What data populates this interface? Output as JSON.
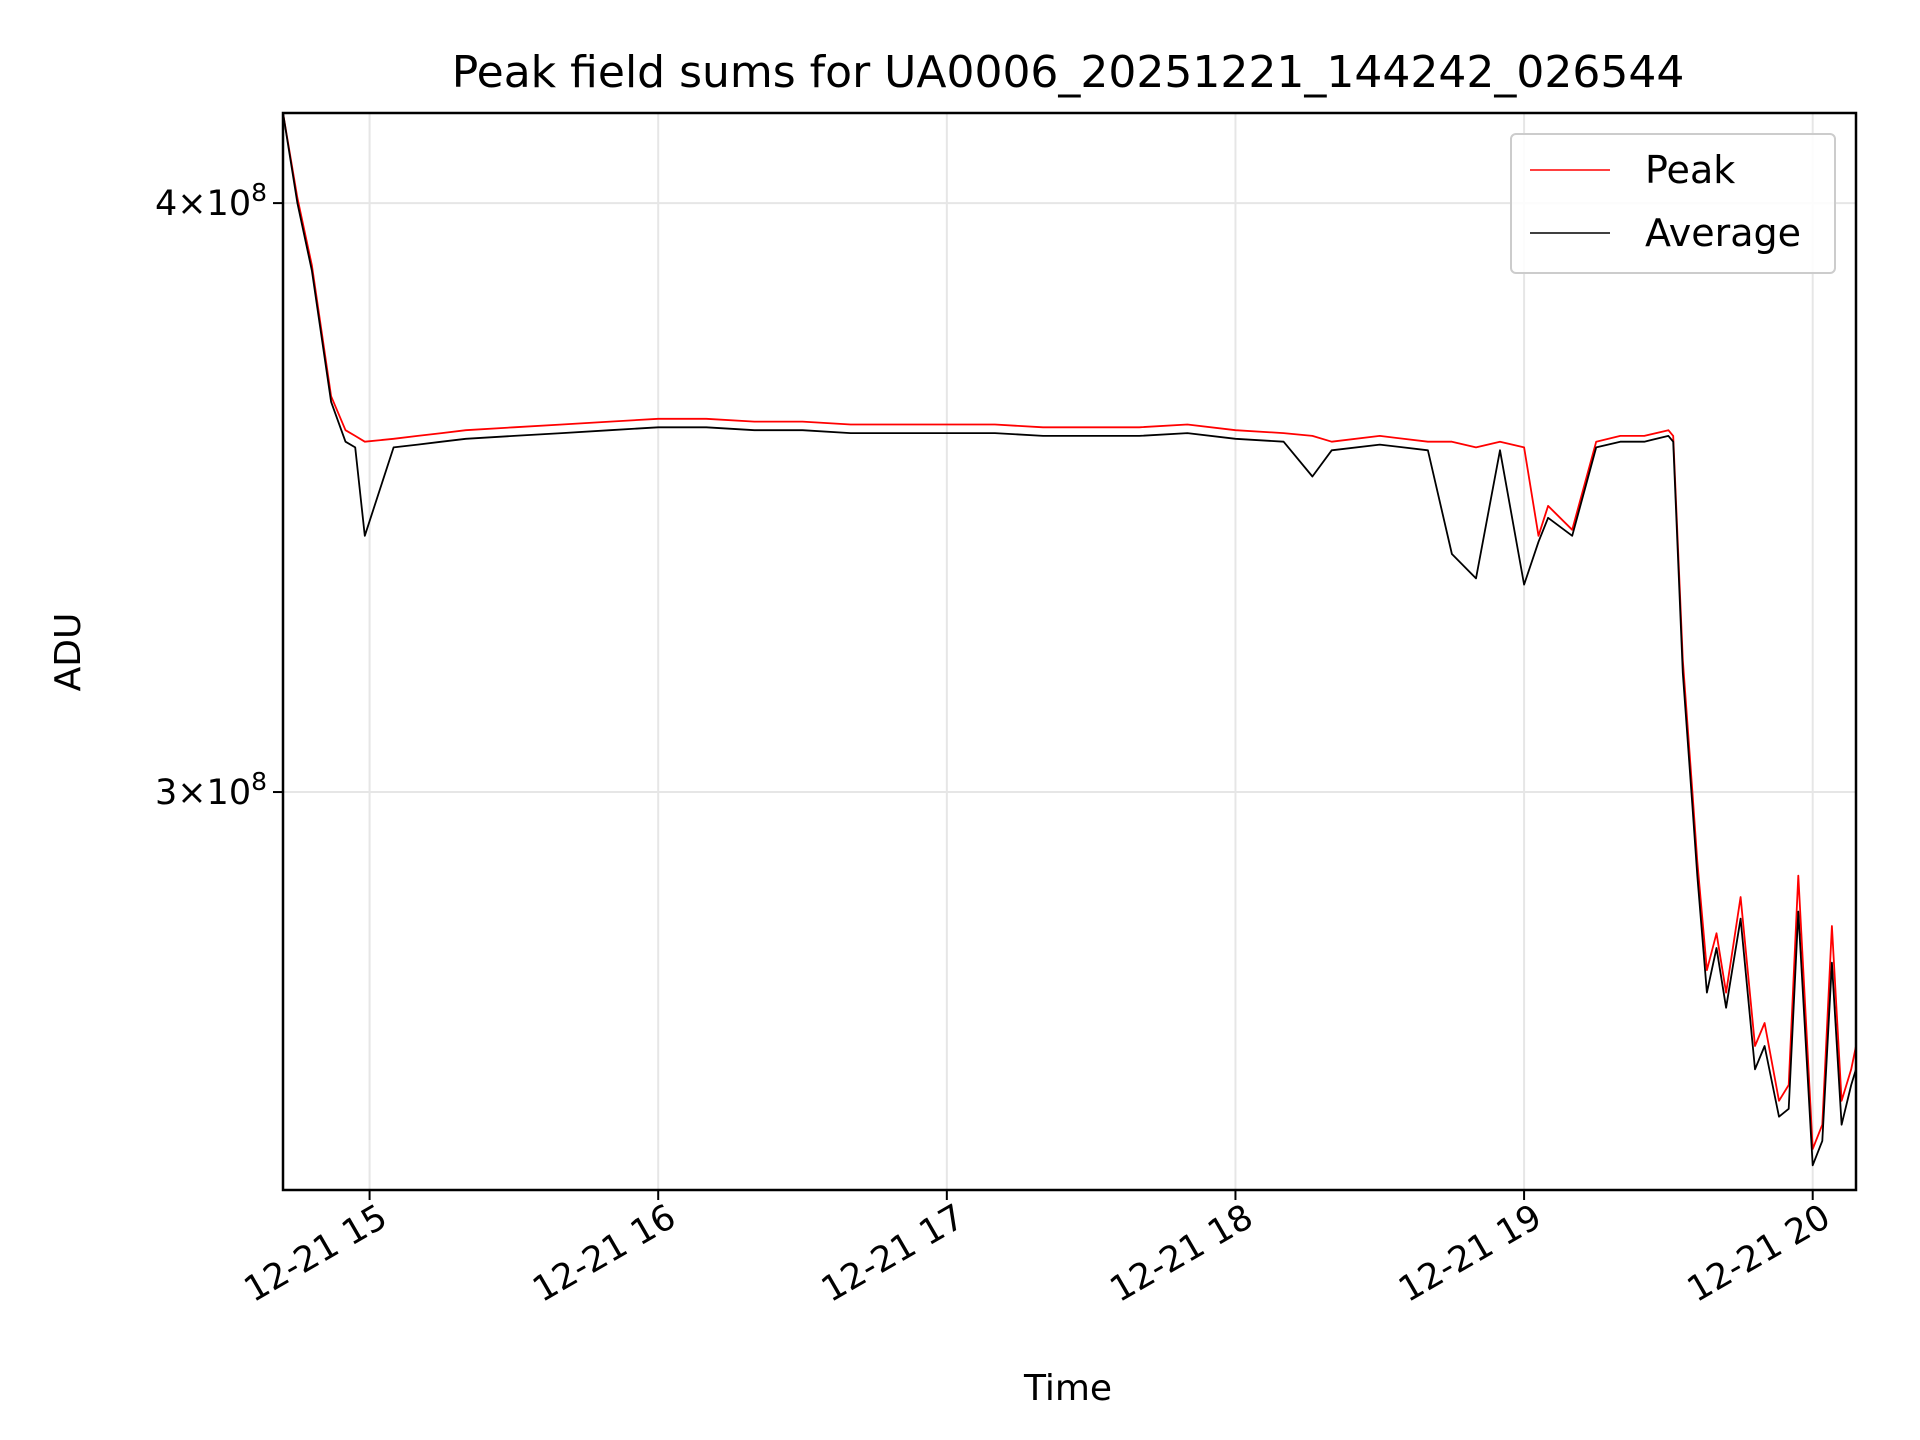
{
  "chart_data": {
    "type": "line",
    "title": "Peak field sums for UA0006_20251221_144242_026544",
    "xlabel": "Time",
    "ylabel": "ADU",
    "y_scale": "log",
    "grid": true,
    "legend_position": "upper right",
    "xlim": [
      "2025-12-21T14:42:00",
      "2025-12-21T20:09:00"
    ],
    "ylim": [
      247000000,
      418000000
    ],
    "x_ticks": [
      {
        "value": "2025-12-21T15:00:00",
        "label": "12-21 15"
      },
      {
        "value": "2025-12-21T16:00:00",
        "label": "12-21 16"
      },
      {
        "value": "2025-12-21T17:00:00",
        "label": "12-21 17"
      },
      {
        "value": "2025-12-21T18:00:00",
        "label": "12-21 18"
      },
      {
        "value": "2025-12-21T19:00:00",
        "label": "12-21 19"
      },
      {
        "value": "2025-12-21T20:00:00",
        "label": "12-21 20"
      }
    ],
    "y_ticks": [
      {
        "value": 400000000,
        "mantissa": "4",
        "times": "×",
        "base": "10",
        "exp": "8"
      },
      {
        "value": 300000000,
        "mantissa": "3",
        "times": "×",
        "base": "10",
        "exp": "8"
      }
    ],
    "series": [
      {
        "name": "Peak",
        "color": "#ff0000",
        "x": [
          "2025-12-21T14:42:00",
          "2025-12-21T14:45:00",
          "2025-12-21T14:48:00",
          "2025-12-21T14:52:00",
          "2025-12-21T14:55:00",
          "2025-12-21T14:57:00",
          "2025-12-21T14:59:00",
          "2025-12-21T15:05:00",
          "2025-12-21T15:10:00",
          "2025-12-21T15:15:00",
          "2025-12-21T15:20:00",
          "2025-12-21T15:30:00",
          "2025-12-21T15:40:00",
          "2025-12-21T15:50:00",
          "2025-12-21T16:00:00",
          "2025-12-21T16:10:00",
          "2025-12-21T16:20:00",
          "2025-12-21T16:30:00",
          "2025-12-21T16:40:00",
          "2025-12-21T16:50:00",
          "2025-12-21T17:00:00",
          "2025-12-21T17:10:00",
          "2025-12-21T17:20:00",
          "2025-12-21T17:30:00",
          "2025-12-21T17:40:00",
          "2025-12-21T17:50:00",
          "2025-12-21T18:00:00",
          "2025-12-21T18:10:00",
          "2025-12-21T18:16:00",
          "2025-12-21T18:20:00",
          "2025-12-21T18:30:00",
          "2025-12-21T18:40:00",
          "2025-12-21T18:45:00",
          "2025-12-21T18:50:00",
          "2025-12-21T18:55:00",
          "2025-12-21T19:00:00",
          "2025-12-21T19:03:00",
          "2025-12-21T19:05:00",
          "2025-12-21T19:10:00",
          "2025-12-21T19:15:00",
          "2025-12-21T19:20:00",
          "2025-12-21T19:25:00",
          "2025-12-21T19:30:00",
          "2025-12-21T19:31:00",
          "2025-12-21T19:33:00",
          "2025-12-21T19:35:00",
          "2025-12-21T19:36:00",
          "2025-12-21T19:38:00",
          "2025-12-21T19:40:00",
          "2025-12-21T19:42:00",
          "2025-12-21T19:45:00",
          "2025-12-21T19:48:00",
          "2025-12-21T19:50:00",
          "2025-12-21T19:53:00",
          "2025-12-21T19:55:00",
          "2025-12-21T19:57:00",
          "2025-12-21T20:00:00",
          "2025-12-21T20:02:00",
          "2025-12-21T20:04:00",
          "2025-12-21T20:06:00",
          "2025-12-21T20:08:00",
          "2025-12-21T20:09:00"
        ],
        "y": [
          418000000,
          401000000,
          388000000,
          364000000,
          358000000,
          357000000,
          356000000,
          356500000,
          357000000,
          357500000,
          358000000,
          358500000,
          359000000,
          359500000,
          360000000,
          360000000,
          359500000,
          359500000,
          359000000,
          359000000,
          359000000,
          359000000,
          358500000,
          358500000,
          358500000,
          359000000,
          358000000,
          357500000,
          357000000,
          356000000,
          357000000,
          356000000,
          356000000,
          355000000,
          356000000,
          355000000,
          340000000,
          345000000,
          341000000,
          356000000,
          357000000,
          357000000,
          358000000,
          357000000,
          320000000,
          300000000,
          290000000,
          275000000,
          280000000,
          272000000,
          285000000,
          265000000,
          268000000,
          258000000,
          260000000,
          288000000,
          252000000,
          255000000,
          281000000,
          258000000,
          262000000,
          265000000
        ]
      },
      {
        "name": "Average",
        "color": "#000000",
        "x": [
          "2025-12-21T14:42:00",
          "2025-12-21T14:45:00",
          "2025-12-21T14:48:00",
          "2025-12-21T14:52:00",
          "2025-12-21T14:55:00",
          "2025-12-21T14:57:00",
          "2025-12-21T14:59:00",
          "2025-12-21T15:05:00",
          "2025-12-21T15:10:00",
          "2025-12-21T15:15:00",
          "2025-12-21T15:20:00",
          "2025-12-21T15:30:00",
          "2025-12-21T15:40:00",
          "2025-12-21T15:50:00",
          "2025-12-21T16:00:00",
          "2025-12-21T16:10:00",
          "2025-12-21T16:20:00",
          "2025-12-21T16:30:00",
          "2025-12-21T16:40:00",
          "2025-12-21T16:50:00",
          "2025-12-21T17:00:00",
          "2025-12-21T17:10:00",
          "2025-12-21T17:20:00",
          "2025-12-21T17:30:00",
          "2025-12-21T17:40:00",
          "2025-12-21T17:50:00",
          "2025-12-21T18:00:00",
          "2025-12-21T18:10:00",
          "2025-12-21T18:16:00",
          "2025-12-21T18:20:00",
          "2025-12-21T18:30:00",
          "2025-12-21T18:40:00",
          "2025-12-21T18:45:00",
          "2025-12-21T18:50:00",
          "2025-12-21T18:55:00",
          "2025-12-21T19:00:00",
          "2025-12-21T19:03:00",
          "2025-12-21T19:05:00",
          "2025-12-21T19:10:00",
          "2025-12-21T19:15:00",
          "2025-12-21T19:20:00",
          "2025-12-21T19:25:00",
          "2025-12-21T19:30:00",
          "2025-12-21T19:31:00",
          "2025-12-21T19:33:00",
          "2025-12-21T19:35:00",
          "2025-12-21T19:36:00",
          "2025-12-21T19:38:00",
          "2025-12-21T19:40:00",
          "2025-12-21T19:42:00",
          "2025-12-21T19:45:00",
          "2025-12-21T19:48:00",
          "2025-12-21T19:50:00",
          "2025-12-21T19:53:00",
          "2025-12-21T19:55:00",
          "2025-12-21T19:57:00",
          "2025-12-21T20:00:00",
          "2025-12-21T20:02:00",
          "2025-12-21T20:04:00",
          "2025-12-21T20:06:00",
          "2025-12-21T20:08:00",
          "2025-12-21T20:09:00"
        ],
        "y": [
          418000000,
          400000000,
          387000000,
          363000000,
          356000000,
          355000000,
          340000000,
          355000000,
          355500000,
          356000000,
          356500000,
          357000000,
          357500000,
          358000000,
          358500000,
          358500000,
          358000000,
          358000000,
          357500000,
          357500000,
          357500000,
          357500000,
          357000000,
          357000000,
          357000000,
          357500000,
          356500000,
          356000000,
          350000000,
          354500000,
          355500000,
          354500000,
          337000000,
          333000000,
          354500000,
          332000000,
          339000000,
          343000000,
          340000000,
          355000000,
          356000000,
          356000000,
          357000000,
          356000000,
          318000000,
          298000000,
          288000000,
          272000000,
          278000000,
          270000000,
          282000000,
          262000000,
          265000000,
          256000000,
          257000000,
          283000000,
          250000000,
          253000000,
          276000000,
          255000000,
          260000000,
          262000000
        ]
      }
    ]
  },
  "legend": {
    "peak_label": "Peak",
    "average_label": "Average"
  }
}
